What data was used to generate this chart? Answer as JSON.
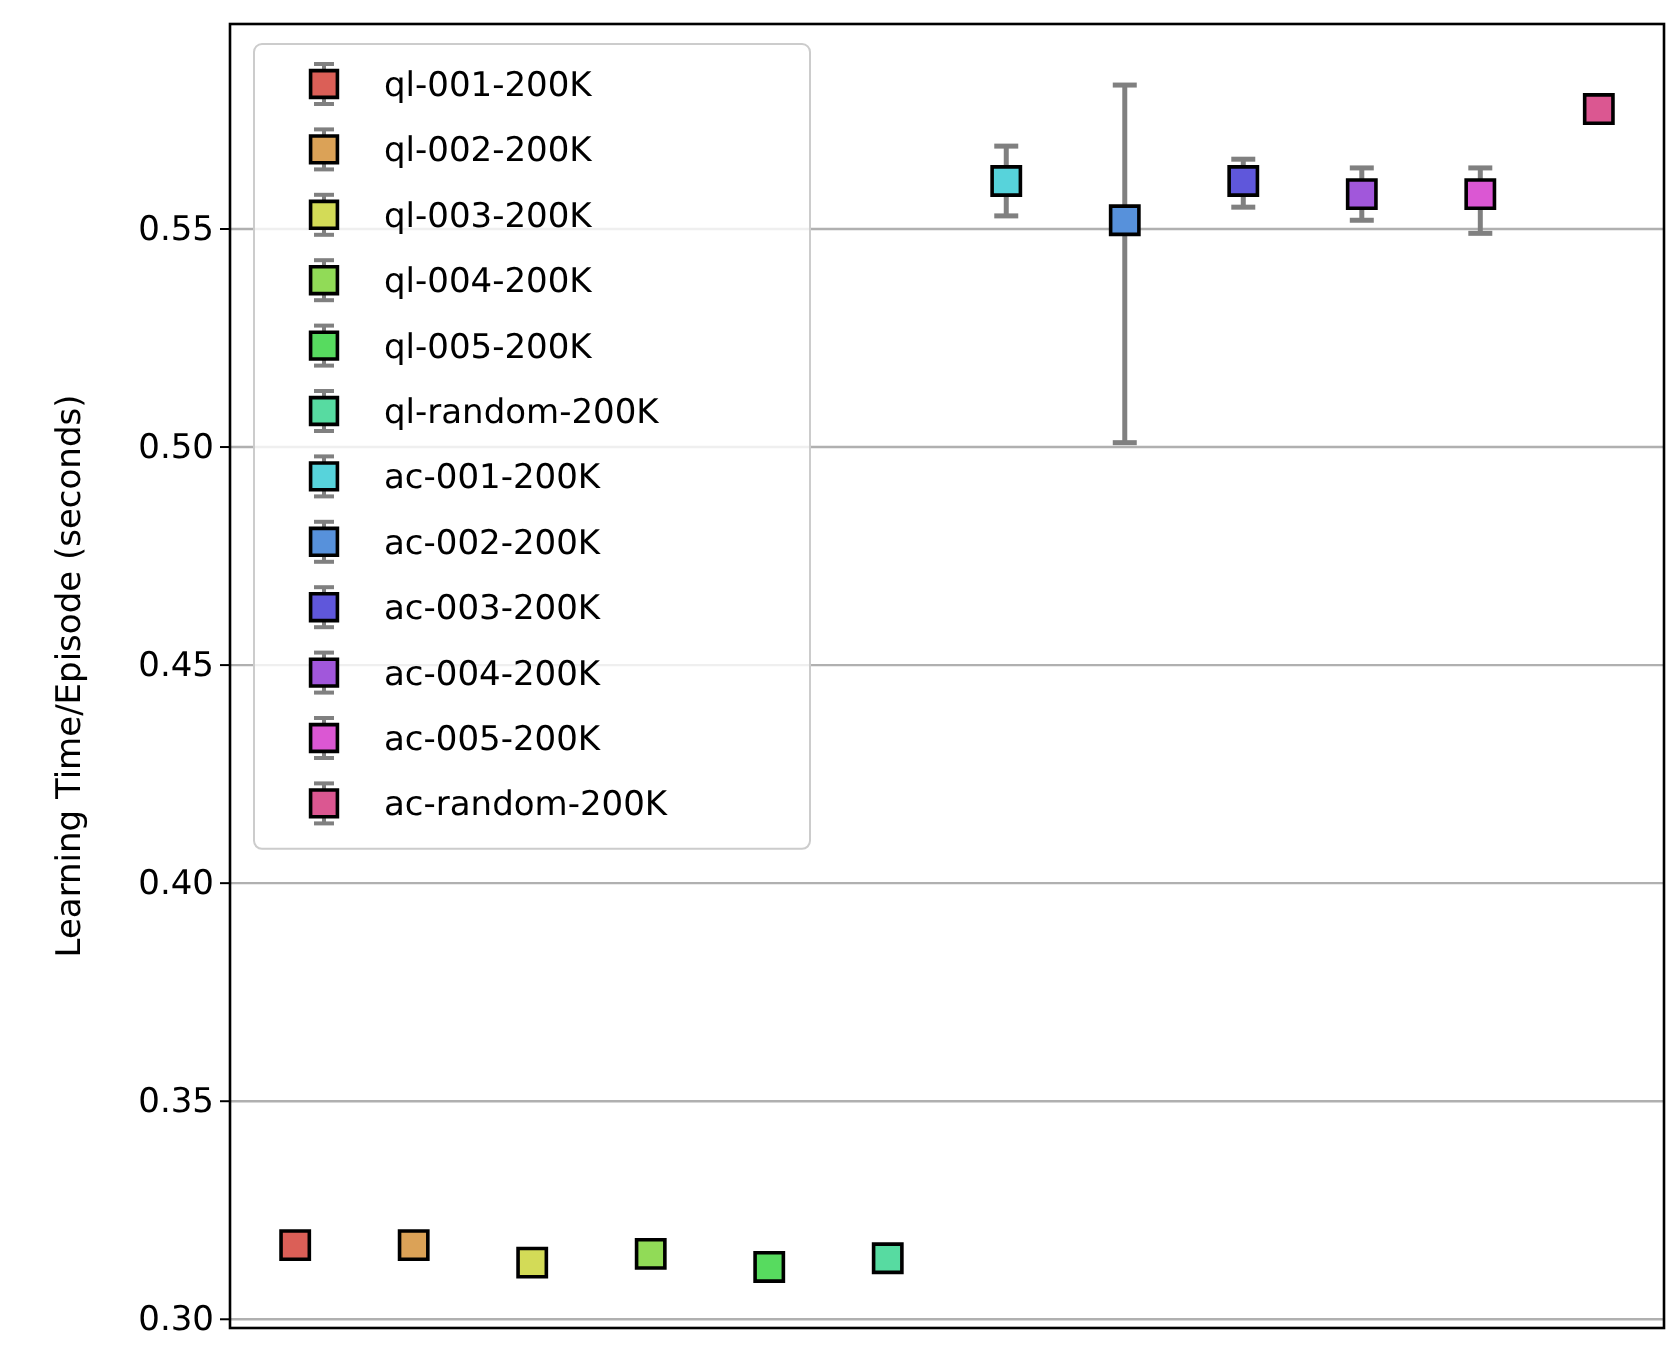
{
  "chart_data": {
    "type": "scatter",
    "ylabel": "Learning Time/Episode (seconds)",
    "categories": [
      null,
      null,
      null,
      null,
      null,
      null,
      null,
      null,
      null,
      null,
      null,
      null
    ],
    "ylim": [
      0.298,
      0.597
    ],
    "yticks": [
      {
        "value": 0.3,
        "label": "0.30"
      },
      {
        "value": 0.35,
        "label": "0.35"
      },
      {
        "value": 0.4,
        "label": "0.40"
      },
      {
        "value": 0.45,
        "label": "0.45"
      },
      {
        "value": 0.5,
        "label": "0.50"
      },
      {
        "value": 0.55,
        "label": "0.55"
      }
    ],
    "grid": "y",
    "legend": "top left",
    "marker": "square",
    "tick_labels": "y",
    "series": [
      {
        "name": "ql-001-200K",
        "color": "#db5f57",
        "values": [
          0.317,
          null,
          null,
          null,
          null,
          null,
          null,
          null,
          null,
          null,
          null,
          null
        ]
      },
      {
        "name": "ql-002-200K",
        "color": "#dba257",
        "values": [
          null,
          0.317,
          null,
          null,
          null,
          null,
          null,
          null,
          null,
          null,
          null,
          null
        ]
      },
      {
        "name": "ql-003-200K",
        "color": "#d3db57",
        "values": [
          null,
          null,
          0.313,
          null,
          null,
          null,
          null,
          null,
          null,
          null,
          null,
          null
        ]
      },
      {
        "name": "ql-004-200K",
        "color": "#91db57",
        "values": [
          null,
          null,
          null,
          0.315,
          null,
          null,
          null,
          null,
          null,
          null,
          null,
          null
        ]
      },
      {
        "name": "ql-005-200K",
        "color": "#57db5f",
        "values": [
          null,
          null,
          null,
          null,
          0.312,
          null,
          null,
          null,
          null,
          null,
          null,
          null
        ]
      },
      {
        "name": "ql-random-200K",
        "color": "#57dba1",
        "values": [
          null,
          null,
          null,
          null,
          null,
          0.314,
          null,
          null,
          null,
          null,
          null,
          null
        ]
      },
      {
        "name": "ac-001-200K",
        "color": "#57d3db",
        "values": [
          null,
          null,
          null,
          null,
          null,
          null,
          0.561,
          null,
          null,
          null,
          null,
          null
        ],
        "errors": [
          null,
          null,
          null,
          null,
          null,
          null,
          0.008,
          null,
          null,
          null,
          null,
          null
        ]
      },
      {
        "name": "ac-002-200K",
        "color": "#5791db",
        "values": [
          null,
          null,
          null,
          null,
          null,
          null,
          null,
          0.552,
          null,
          null,
          null,
          null
        ],
        "errors": [
          null,
          null,
          null,
          null,
          null,
          null,
          null,
          [
            0.501,
            0.583
          ],
          null,
          null,
          null,
          null
        ]
      },
      {
        "name": "ac-003-200K",
        "color": "#5f57db",
        "values": [
          null,
          null,
          null,
          null,
          null,
          null,
          null,
          null,
          0.561,
          null,
          null,
          null
        ],
        "errors": [
          null,
          null,
          null,
          null,
          null,
          null,
          null,
          null,
          [
            0.555,
            0.566
          ],
          null,
          null,
          null
        ]
      },
      {
        "name": "ac-004-200K",
        "color": "#a157db",
        "values": [
          null,
          null,
          null,
          null,
          null,
          null,
          null,
          null,
          null,
          0.558,
          null,
          null
        ],
        "errors": [
          null,
          null,
          null,
          null,
          null,
          null,
          null,
          null,
          null,
          0.006,
          null,
          null
        ]
      },
      {
        "name": "ac-005-200K",
        "color": "#db57d3",
        "values": [
          null,
          null,
          null,
          null,
          null,
          null,
          null,
          null,
          null,
          null,
          0.558,
          null
        ],
        "errors": [
          null,
          null,
          null,
          null,
          null,
          null,
          null,
          null,
          null,
          null,
          [
            0.549,
            0.564
          ],
          null
        ]
      },
      {
        "name": "ac-random-200K",
        "color": "#db5791",
        "values": [
          null,
          null,
          null,
          null,
          null,
          null,
          null,
          null,
          null,
          null,
          null,
          0.5775
        ]
      }
    ]
  }
}
